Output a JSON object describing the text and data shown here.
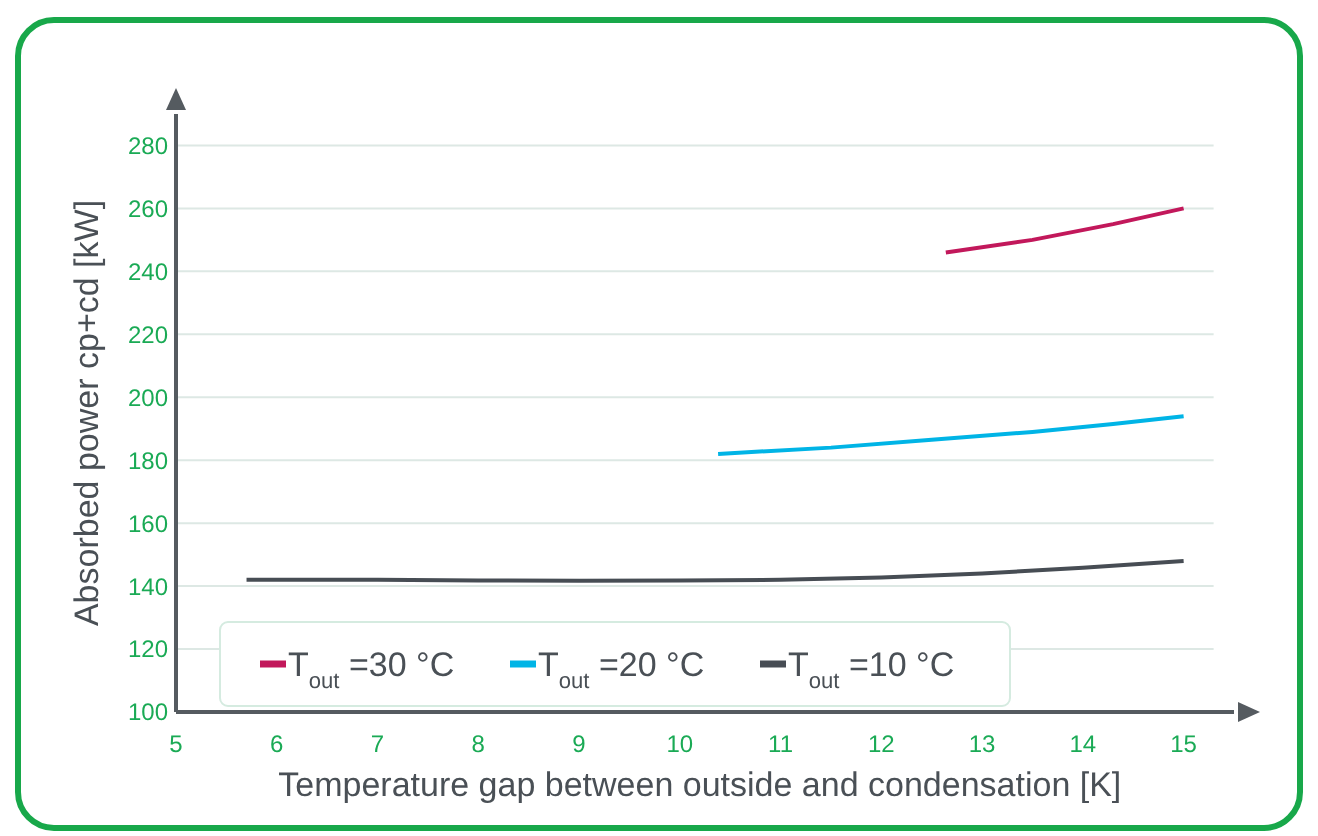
{
  "chart_data": {
    "type": "line",
    "xlabel": "Temperature gap between outside and condensation [K]",
    "ylabel": "Absorbed power cp+cd [kW]",
    "xlim": [
      5,
      15.5
    ],
    "xticks": [
      5,
      6,
      7,
      8,
      9,
      10,
      11,
      12,
      13,
      14,
      15
    ],
    "ylim": [
      100,
      290
    ],
    "yticks": [
      100,
      120,
      140,
      160,
      180,
      200,
      220,
      240,
      260,
      280
    ],
    "grid": "y",
    "legend": "bottom left",
    "marker": "none",
    "line_style": "solid",
    "series": [
      {
        "name": "T$_{out}$ =30 °C",
        "color": "#c2185b",
        "x": [
          12.64,
          13.5,
          14.3,
          15
        ],
        "values": [
          246,
          250,
          255,
          260
        ]
      },
      {
        "name": "T$_{out}$ =20 °C",
        "color": "#00b4e6",
        "x": [
          10.38,
          11.5,
          12.5,
          13.5,
          14.3,
          15
        ],
        "values": [
          182,
          184,
          186.5,
          189,
          191.5,
          194
        ]
      },
      {
        "name": "T$_{out}$ =10 °C",
        "color": "#474d54",
        "x": [
          5.7,
          7,
          8,
          9,
          10,
          11,
          12,
          13,
          14,
          15
        ],
        "values": [
          142,
          142,
          141.8,
          141.7,
          141.8,
          142,
          142.7,
          144,
          145.8,
          148
        ]
      }
    ]
  }
}
